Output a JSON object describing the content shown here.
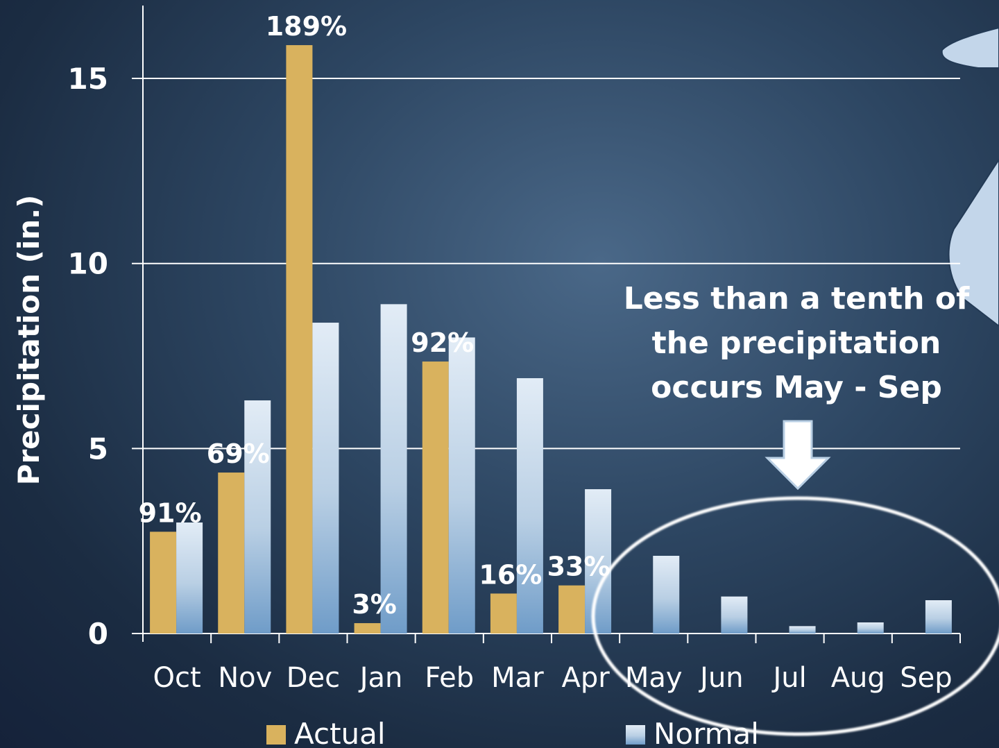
{
  "chart_data": {
    "type": "bar",
    "ylabel": "Precipitation (in.)",
    "ylim": [
      0,
      16
    ],
    "yticks": [
      0,
      5,
      10,
      15
    ],
    "grid": true,
    "categories": [
      "Oct",
      "Nov",
      "Dec",
      "Jan",
      "Feb",
      "Mar",
      "Apr",
      "May",
      "Jun",
      "Jul",
      "Aug",
      "Sep"
    ],
    "series": [
      {
        "name": "Actual",
        "color": "#d9b25e",
        "values": [
          2.75,
          4.35,
          15.9,
          0.28,
          7.35,
          1.08,
          1.3,
          0,
          0,
          0,
          0,
          0
        ]
      },
      {
        "name": "Normal",
        "color": "#9fbedb",
        "values": [
          3.0,
          6.3,
          8.4,
          8.9,
          8.0,
          6.9,
          3.9,
          2.1,
          1.0,
          0.2,
          0.3,
          0.9
        ]
      }
    ],
    "percent_labels": [
      "91%",
      "69%",
      "189%",
      "3%",
      "92%",
      "16%",
      "33%",
      "",
      "",
      "",
      "",
      ""
    ],
    "annotation": [
      "Less than a tenth of",
      "the precipitation",
      "occurs May - Sep"
    ],
    "legend_position": "bottom"
  },
  "colors": {
    "background": "#2d4662",
    "gridline": "#ffffff",
    "shape_fill": "#c3d6ea"
  }
}
